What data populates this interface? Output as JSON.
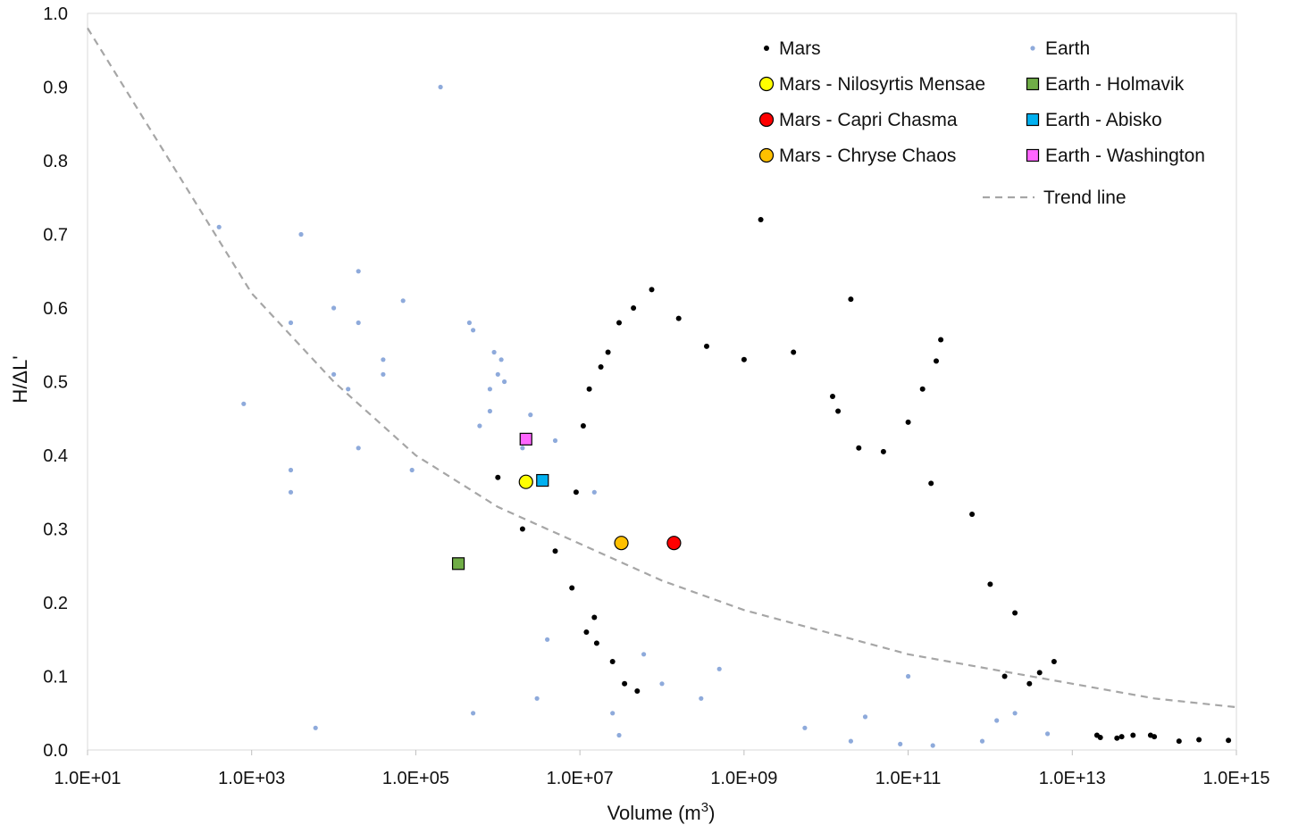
{
  "chart_data": {
    "type": "scatter",
    "xlabel": "Volume (m",
    "xlabel_sup": "3",
    "xlabel_close": ")",
    "ylabel": "H/ΔL'",
    "x_scale": "log",
    "xlim": [
      10,
      1000000000000000.0
    ],
    "ylim": [
      0,
      1.0
    ],
    "x_ticks": [
      10,
      1000,
      100000,
      10000000,
      1000000000,
      100000000000,
      10000000000000,
      1000000000000000
    ],
    "x_tick_labels": [
      "1.0E+01",
      "1.0E+03",
      "1.0E+05",
      "1.0E+07",
      "1.0E+09",
      "1.0E+11",
      "1.0E+13",
      "1.0E+15"
    ],
    "y_ticks": [
      0,
      0.1,
      0.2,
      0.3,
      0.4,
      0.5,
      0.6,
      0.7,
      0.8,
      0.9,
      1.0
    ],
    "y_tick_labels": [
      "0.0",
      "0.1",
      "0.2",
      "0.3",
      "0.4",
      "0.5",
      "0.6",
      "0.7",
      "0.8",
      "0.9",
      "1.0"
    ],
    "grid": false,
    "legend_position": "top-right",
    "legend": [
      {
        "label": "Mars",
        "marker": "small-dot",
        "color": "#000000"
      },
      {
        "label": "Earth",
        "marker": "small-dot",
        "color": "#8eaadb"
      },
      {
        "label": "Mars - Nilosyrtis Mensae",
        "marker": "circle",
        "color": "#ffff00"
      },
      {
        "label": "Earth - Holmavik",
        "marker": "square",
        "color": "#70ad47"
      },
      {
        "label": "Mars - Capri Chasma",
        "marker": "circle",
        "color": "#ff0000"
      },
      {
        "label": "Earth - Abisko",
        "marker": "square",
        "color": "#00b0f0"
      },
      {
        "label": "Mars - Chryse Chaos",
        "marker": "circle",
        "color": "#ffc000"
      },
      {
        "label": "Earth - Washington",
        "marker": "square",
        "color": "#ff66ff"
      },
      {
        "label": "Trend line",
        "marker": "dashed-line",
        "color": "#a6a6a6"
      }
    ],
    "series": [
      {
        "name": "Mars",
        "color": "#000000",
        "points": [
          [
            1600000000.0,
            0.72
          ],
          [
            250000000000.0,
            0.557
          ],
          [
            220000000000.0,
            0.528
          ],
          [
            20000000000.0,
            0.612
          ],
          [
            75000000.0,
            0.625
          ],
          [
            160000000.0,
            0.586
          ],
          [
            350000000.0,
            0.548
          ],
          [
            1000000000.0,
            0.53
          ],
          [
            4000000000.0,
            0.54
          ],
          [
            12000000000.0,
            0.48
          ],
          [
            14000000000.0,
            0.46
          ],
          [
            25000000000.0,
            0.41
          ],
          [
            50000000000.0,
            0.405
          ],
          [
            100000000000.0,
            0.445
          ],
          [
            150000000000.0,
            0.49
          ],
          [
            190000000000.0,
            0.362
          ],
          [
            600000000000.0,
            0.32
          ],
          [
            1000000000000.0,
            0.225
          ],
          [
            2000000000000.0,
            0.186
          ],
          [
            6000000000000.0,
            0.12
          ],
          [
            20000000000000.0,
            0.02
          ],
          [
            22000000000000.0,
            0.017
          ],
          [
            35000000000000.0,
            0.016
          ],
          [
            40000000000000.0,
            0.018
          ],
          [
            55000000000000.0,
            0.02
          ],
          [
            90000000000000.0,
            0.02
          ],
          [
            100000000000000.0,
            0.018
          ],
          [
            200000000000000.0,
            0.012
          ],
          [
            350000000000000.0,
            0.014
          ],
          [
            800000000000000.0,
            0.013
          ],
          [
            4000000000000.0,
            0.105
          ],
          [
            3000000000000.0,
            0.09
          ],
          [
            1500000000000.0,
            0.1
          ],
          [
            1000000.0,
            0.37
          ],
          [
            2000000.0,
            0.3
          ],
          [
            5000000.0,
            0.27
          ],
          [
            8000000.0,
            0.22
          ],
          [
            12000000.0,
            0.16
          ],
          [
            15000000.0,
            0.18
          ],
          [
            16000000.0,
            0.145
          ],
          [
            25000000.0,
            0.12
          ],
          [
            35000000.0,
            0.09
          ],
          [
            50000000.0,
            0.08
          ],
          [
            9000000.0,
            0.35
          ],
          [
            11000000.0,
            0.44
          ],
          [
            13000000.0,
            0.49
          ],
          [
            18000000.0,
            0.52
          ],
          [
            22000000.0,
            0.54
          ],
          [
            30000000.0,
            0.58
          ],
          [
            45000000.0,
            0.6
          ]
        ]
      },
      {
        "name": "Earth",
        "color": "#8eaadb",
        "points": [
          [
            200000.0,
            0.9
          ],
          [
            400.0,
            0.71
          ],
          [
            4000.0,
            0.7
          ],
          [
            20000.0,
            0.65
          ],
          [
            70000.0,
            0.61
          ],
          [
            10000.0,
            0.6
          ],
          [
            3000.0,
            0.58
          ],
          [
            20000.0,
            0.58
          ],
          [
            450000.0,
            0.58
          ],
          [
            500000.0,
            0.57
          ],
          [
            800.0,
            0.47
          ],
          [
            40000.0,
            0.53
          ],
          [
            10000.0,
            0.51
          ],
          [
            40000.0,
            0.51
          ],
          [
            15000.0,
            0.49
          ],
          [
            900000.0,
            0.54
          ],
          [
            1100000.0,
            0.53
          ],
          [
            1000000.0,
            0.51
          ],
          [
            1200000.0,
            0.5
          ],
          [
            800000.0,
            0.49
          ],
          [
            800000.0,
            0.46
          ],
          [
            600000.0,
            0.44
          ],
          [
            2500000.0,
            0.455
          ],
          [
            2000000.0,
            0.41
          ],
          [
            5000000.0,
            0.42
          ],
          [
            20000.0,
            0.41
          ],
          [
            3000.0,
            0.38
          ],
          [
            90000.0,
            0.38
          ],
          [
            3000.0,
            0.35
          ],
          [
            15000000.0,
            0.35
          ],
          [
            4000000.0,
            0.15
          ],
          [
            25000000.0,
            0.05
          ],
          [
            500000.0,
            0.05
          ],
          [
            3000000.0,
            0.07
          ],
          [
            6000.0,
            0.03
          ],
          [
            30000000.0,
            0.02
          ],
          [
            5500000000.0,
            0.03
          ],
          [
            20000000000.0,
            0.012
          ],
          [
            80000000000.0,
            0.008
          ],
          [
            200000000000.0,
            0.006
          ],
          [
            800000000000.0,
            0.012
          ],
          [
            1200000000000.0,
            0.04
          ],
          [
            2000000000000.0,
            0.05
          ],
          [
            5000000000000.0,
            0.022
          ],
          [
            100000000000.0,
            0.1
          ],
          [
            30000000000.0,
            0.045
          ],
          [
            500000000.0,
            0.11
          ],
          [
            300000000.0,
            0.07
          ],
          [
            100000000.0,
            0.09
          ],
          [
            60000000.0,
            0.13
          ]
        ]
      }
    ],
    "highlighted_points": [
      {
        "name": "Mars - Nilosyrtis Mensae",
        "x": 2200000.0,
        "y": 0.364,
        "marker": "circle",
        "color": "#ffff00"
      },
      {
        "name": "Earth - Abisko",
        "x": 3500000.0,
        "y": 0.366,
        "marker": "square",
        "color": "#00b0f0"
      },
      {
        "name": "Earth - Washington",
        "x": 2200000.0,
        "y": 0.422,
        "marker": "square",
        "color": "#ff66ff"
      },
      {
        "name": "Mars - Chryse Chaos",
        "x": 32000000.0,
        "y": 0.281,
        "marker": "circle",
        "color": "#ffc000"
      },
      {
        "name": "Mars - Capri Chasma",
        "x": 140000000.0,
        "y": 0.281,
        "marker": "circle",
        "color": "#ff0000"
      },
      {
        "name": "Earth - Holmavik",
        "x": 330000.0,
        "y": 0.253,
        "marker": "square",
        "color": "#70ad47"
      }
    ],
    "trend_line": {
      "name": "Trend line",
      "style": "dashed",
      "color": "#a6a6a6",
      "points": [
        [
          10,
          0.98
        ],
        [
          100,
          0.8
        ],
        [
          1000,
          0.62
        ],
        [
          10000.0,
          0.5
        ],
        [
          100000.0,
          0.4
        ],
        [
          1000000.0,
          0.33
        ],
        [
          10000000.0,
          0.28
        ],
        [
          100000000.0,
          0.23
        ],
        [
          1000000000.0,
          0.19
        ],
        [
          10000000000.0,
          0.16
        ],
        [
          100000000000.0,
          0.13
        ],
        [
          1000000000000.0,
          0.11
        ],
        [
          10000000000000.0,
          0.09
        ],
        [
          100000000000000.0,
          0.07
        ],
        [
          1000000000000000.0,
          0.058
        ]
      ]
    }
  }
}
